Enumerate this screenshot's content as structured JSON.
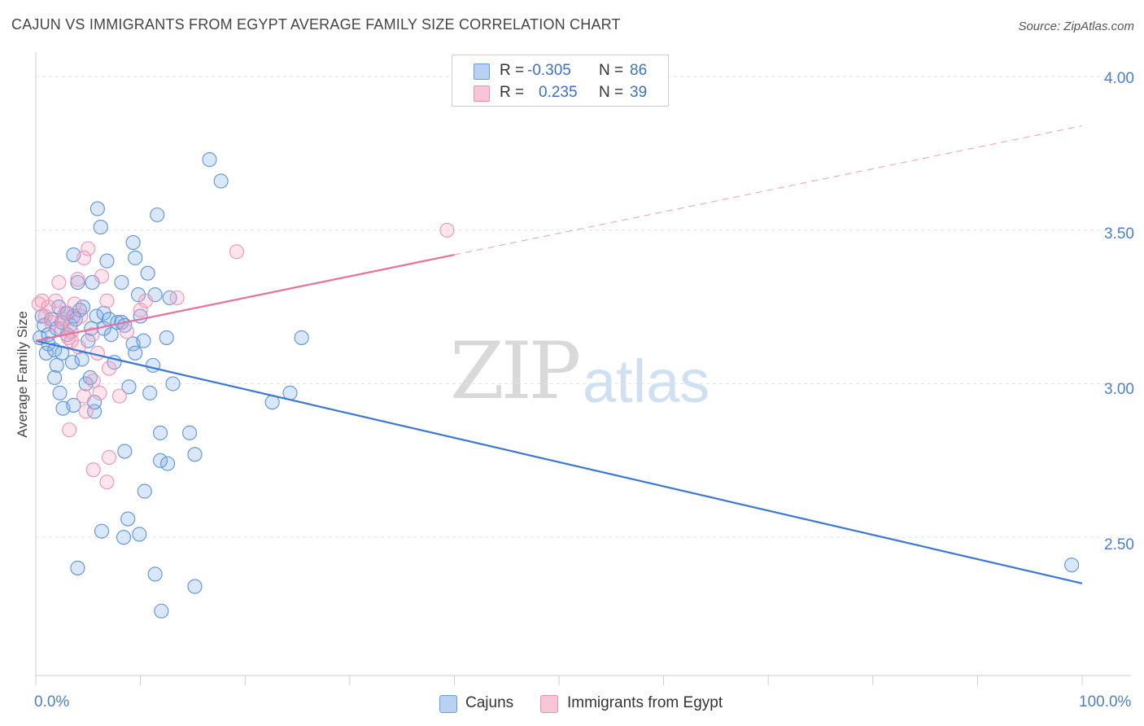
{
  "title": "CAJUN VS IMMIGRANTS FROM EGYPT AVERAGE FAMILY SIZE CORRELATION CHART",
  "source": "Source: ZipAtlas.com",
  "watermark": {
    "zip": "ZIP",
    "atlas": "atlas"
  },
  "legend": {
    "rows": [
      {
        "r_label": "R =",
        "r_value": "-0.305",
        "n_label": "N =",
        "n_value": "86"
      },
      {
        "r_label": "R =",
        "r_value": "0.235",
        "n_label": "N =",
        "n_value": "39"
      }
    ]
  },
  "bottom_legend": [
    "Cajuns",
    "Immigrants from Egypt"
  ],
  "colors": {
    "blue": "#3a78d4",
    "blue_fill": "rgba(120,170,235,0.28)",
    "blue_stroke": "#5b93dc",
    "pink": "#e8709a",
    "pink_fill": "rgba(245,160,190,0.28)",
    "pink_stroke": "#ee93b2",
    "grid": "#e3e3e3",
    "tick_text": "#4c7fc9"
  },
  "chart_data": {
    "type": "scatter",
    "title": "CAJUN VS IMMIGRANTS FROM EGYPT AVERAGE FAMILY SIZE CORRELATION CHART",
    "xlabel": "",
    "ylabel": "Average Family Size",
    "xlim": [
      0,
      100
    ],
    "ylim": [
      2.05,
      4.08
    ],
    "x_tick_labels": [
      "0.0%",
      "100.0%"
    ],
    "y_ticks": [
      2.5,
      3.0,
      3.5,
      4.0
    ],
    "y_tick_labels": [
      "2.50",
      "3.00",
      "3.50",
      "4.00"
    ],
    "series": [
      {
        "name": "Cajuns",
        "r": -0.305,
        "n": 86,
        "trend": {
          "x0": 0,
          "y0": 3.14,
          "x1": 100,
          "y1": 2.35,
          "dashed_from": null
        },
        "points": [
          [
            0.4,
            3.15
          ],
          [
            0.6,
            3.22
          ],
          [
            0.8,
            3.19
          ],
          [
            1.0,
            3.1
          ],
          [
            1.2,
            3.13
          ],
          [
            1.5,
            3.21
          ],
          [
            1.8,
            3.11
          ],
          [
            2.0,
            3.18
          ],
          [
            2.2,
            3.25
          ],
          [
            2.5,
            3.2
          ],
          [
            2.8,
            3.23
          ],
          [
            3.0,
            3.23
          ],
          [
            3.3,
            3.19
          ],
          [
            3.6,
            3.22
          ],
          [
            3.8,
            3.21
          ],
          [
            4.2,
            3.24
          ],
          [
            4.5,
            3.25
          ],
          [
            5.0,
            3.14
          ],
          [
            5.3,
            3.18
          ],
          [
            5.8,
            3.22
          ],
          [
            6.5,
            3.23
          ],
          [
            7.0,
            3.21
          ],
          [
            7.8,
            3.2
          ],
          [
            8.2,
            3.2
          ],
          [
            8.5,
            3.19
          ],
          [
            9.3,
            3.13
          ],
          [
            10.0,
            3.22
          ],
          [
            2.0,
            3.06
          ],
          [
            2.5,
            3.1
          ],
          [
            3.5,
            3.07
          ],
          [
            4.8,
            3.0
          ],
          [
            5.2,
            3.02
          ],
          [
            9.5,
            3.1
          ],
          [
            10.3,
            3.14
          ],
          [
            11.2,
            3.06
          ],
          [
            12.5,
            3.15
          ],
          [
            1.8,
            3.02
          ],
          [
            2.3,
            2.97
          ],
          [
            2.6,
            2.92
          ],
          [
            3.6,
            2.93
          ],
          [
            5.6,
            2.91
          ],
          [
            5.6,
            2.94
          ],
          [
            8.9,
            2.99
          ],
          [
            10.9,
            2.97
          ],
          [
            13.1,
            3.0
          ],
          [
            6.8,
            3.4
          ],
          [
            9.3,
            3.46
          ],
          [
            9.5,
            3.41
          ],
          [
            10.7,
            3.36
          ],
          [
            12.8,
            3.28
          ],
          [
            14.7,
            2.84
          ],
          [
            3.6,
            3.42
          ],
          [
            4.0,
            3.33
          ],
          [
            5.4,
            3.33
          ],
          [
            5.9,
            3.57
          ],
          [
            6.2,
            3.51
          ],
          [
            8.2,
            3.33
          ],
          [
            9.8,
            3.29
          ],
          [
            11.4,
            3.29
          ],
          [
            11.6,
            3.55
          ],
          [
            16.6,
            3.73
          ],
          [
            17.7,
            3.66
          ],
          [
            11.9,
            2.84
          ],
          [
            8.5,
            2.78
          ],
          [
            11.9,
            2.75
          ],
          [
            12.6,
            2.74
          ],
          [
            15.2,
            2.77
          ],
          [
            10.4,
            2.65
          ],
          [
            6.3,
            2.52
          ],
          [
            8.4,
            2.5
          ],
          [
            8.8,
            2.56
          ],
          [
            9.9,
            2.51
          ],
          [
            4.0,
            2.4
          ],
          [
            11.4,
            2.38
          ],
          [
            12.0,
            2.26
          ],
          [
            15.2,
            2.34
          ],
          [
            22.6,
            2.94
          ],
          [
            24.3,
            2.97
          ],
          [
            25.4,
            3.15
          ],
          [
            99.0,
            2.41
          ],
          [
            7.2,
            3.16
          ],
          [
            6.5,
            3.18
          ],
          [
            3.0,
            3.16
          ],
          [
            4.4,
            3.08
          ],
          [
            7.5,
            3.07
          ],
          [
            1.2,
            3.16
          ]
        ]
      },
      {
        "name": "Immigrants from Egypt",
        "r": 0.235,
        "n": 39,
        "trend": {
          "x0": 0,
          "y0": 3.14,
          "x1": 100,
          "y1": 3.84,
          "dashed_from": 40
        },
        "points": [
          [
            0.3,
            3.26
          ],
          [
            0.6,
            3.27
          ],
          [
            0.9,
            3.22
          ],
          [
            1.2,
            3.25
          ],
          [
            1.5,
            3.2
          ],
          [
            1.9,
            3.27
          ],
          [
            2.2,
            3.33
          ],
          [
            2.5,
            3.18
          ],
          [
            2.8,
            3.23
          ],
          [
            3.1,
            3.15
          ],
          [
            3.4,
            3.17
          ],
          [
            3.7,
            3.26
          ],
          [
            4.0,
            3.34
          ],
          [
            4.3,
            3.22
          ],
          [
            4.6,
            3.41
          ],
          [
            5.0,
            3.44
          ],
          [
            5.4,
            3.16
          ],
          [
            6.3,
            3.35
          ],
          [
            6.8,
            3.27
          ],
          [
            3.4,
            3.14
          ],
          [
            4.1,
            3.12
          ],
          [
            5.9,
            3.1
          ],
          [
            2.6,
            3.21
          ],
          [
            4.6,
            2.96
          ],
          [
            5.5,
            3.01
          ],
          [
            6.1,
            2.97
          ],
          [
            7.0,
            3.05
          ],
          [
            4.8,
            2.91
          ],
          [
            8.0,
            2.96
          ],
          [
            3.2,
            2.85
          ],
          [
            7.0,
            2.76
          ],
          [
            5.5,
            2.72
          ],
          [
            6.8,
            2.68
          ],
          [
            8.7,
            3.17
          ],
          [
            10.0,
            3.24
          ],
          [
            10.5,
            3.27
          ],
          [
            13.5,
            3.28
          ],
          [
            19.2,
            3.43
          ],
          [
            39.3,
            3.5
          ]
        ]
      }
    ]
  }
}
